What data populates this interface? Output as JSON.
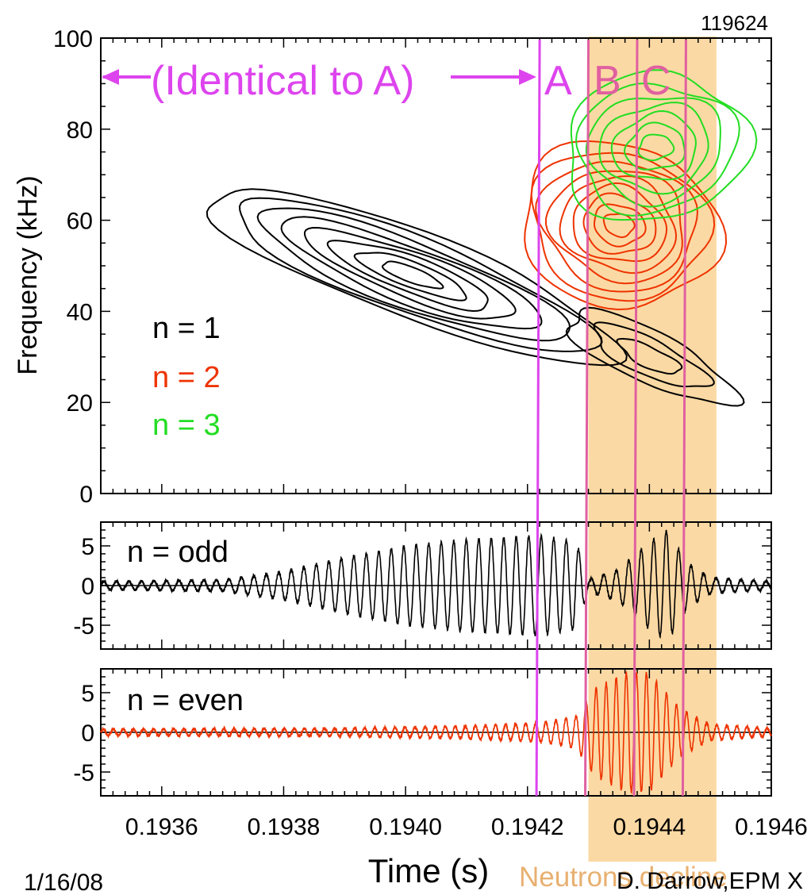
{
  "shot_number": "119624",
  "date": "1/16/08",
  "credit": "D. Darrow,EPM X",
  "xlabel": "Time (s)",
  "shaded_label": "Neutrons decline",
  "colors": {
    "n1": "#000000",
    "n2": "#ee3300",
    "n3": "#22dd22",
    "magenta": "#dd44ee",
    "pink_line": "#e060a0",
    "shade": "#fbd9a4"
  },
  "annotations": {
    "identical": "(Identical to A)",
    "A": "A",
    "B": "B",
    "C": "C"
  },
  "legend": [
    "n = 1",
    "n = 2",
    "n = 3"
  ],
  "chart_data": [
    {
      "type": "contour",
      "panel": "spectrogram",
      "ylabel": "Frequency (kHz)",
      "xlim": [
        0.1935,
        0.1946
      ],
      "ylim": [
        0,
        100
      ],
      "yticks": [
        "0",
        "20",
        "40",
        "60",
        "80",
        "100"
      ],
      "series": [
        {
          "name": "n = 1",
          "description": "chirping mode from ~63 kHz at 0.19363 s down to ~20 kHz at 0.19455 s"
        },
        {
          "name": "n = 2",
          "description": "mode centered ~60 kHz at 0.19435 s"
        },
        {
          "name": "n = 3",
          "description": "mode centered ~78 kHz at 0.19440 s"
        }
      ],
      "markers": [
        {
          "label": "A",
          "time": 0.19422
        },
        {
          "label": "B",
          "time": 0.1943
        },
        {
          "label": "C",
          "time": 0.19438
        },
        {
          "label": "",
          "time": 0.19446
        }
      ],
      "shaded_region": [
        0.1943,
        0.19451
      ]
    },
    {
      "type": "line",
      "panel": "odd",
      "title": "n = odd",
      "ylim": [
        -8,
        8
      ],
      "yticks": [
        "5",
        "0",
        "-5"
      ],
      "envelope": {
        "time": [
          0.1935,
          0.1937,
          0.1938,
          0.1939,
          0.194,
          0.1941,
          0.19422,
          0.19428,
          0.1943,
          0.19435,
          0.1944,
          0.19443,
          0.19446,
          0.1945,
          0.1946
        ],
        "amplitude": [
          0.5,
          0.7,
          1.8,
          3.5,
          5.0,
          5.8,
          6.3,
          5.5,
          0.8,
          2.0,
          5.5,
          7.0,
          3.0,
          1.0,
          0.5
        ]
      }
    },
    {
      "type": "line",
      "panel": "even",
      "title": "n = even",
      "xlim": [
        0.1935,
        0.1946
      ],
      "xticks": [
        "0.1936",
        "0.1938",
        "0.1940",
        "0.1942",
        "0.1944",
        "0.1946"
      ],
      "ylim": [
        -8,
        8
      ],
      "yticks": [
        "5",
        "0",
        "-5"
      ],
      "envelope": {
        "time": [
          0.1935,
          0.1939,
          0.1941,
          0.19422,
          0.19428,
          0.19431,
          0.19436,
          0.1944,
          0.19445,
          0.1945,
          0.1946
        ],
        "amplitude": [
          0.4,
          0.5,
          0.8,
          1.2,
          2.0,
          5.5,
          7.5,
          7.5,
          3.0,
          1.0,
          0.5
        ]
      }
    }
  ]
}
